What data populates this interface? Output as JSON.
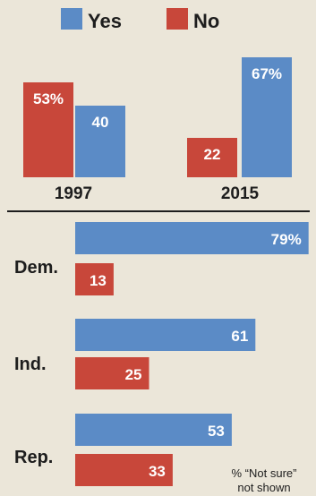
{
  "legend": [
    {
      "label": "Yes",
      "color": "#5b8bc6"
    },
    {
      "label": "No",
      "color": "#c8473a"
    }
  ],
  "note": [
    "% “Not sure”",
    "not shown"
  ],
  "chart_data": [
    {
      "type": "bar",
      "orientation": "vertical",
      "categories": [
        "1997",
        "2015"
      ],
      "series": [
        {
          "name": "No",
          "values": [
            53,
            22
          ],
          "labels": [
            "53%",
            "22"
          ],
          "color": "#c8473a"
        },
        {
          "name": "Yes",
          "values": [
            40,
            67
          ],
          "labels": [
            "40",
            "67%"
          ],
          "color": "#5b8bc6"
        }
      ],
      "title": "",
      "xlabel": "",
      "ylabel": "",
      "ylim": [
        0,
        70
      ],
      "grid": false,
      "legend_position": "top"
    },
    {
      "type": "bar",
      "orientation": "horizontal",
      "categories": [
        "Dem.",
        "Ind.",
        "Rep."
      ],
      "series": [
        {
          "name": "Yes",
          "values": [
            79,
            61,
            53
          ],
          "labels": [
            "79%",
            "61",
            "53"
          ],
          "color": "#5b8bc6"
        },
        {
          "name": "No",
          "values": [
            13,
            25,
            33
          ],
          "labels": [
            "13",
            "25",
            "33"
          ],
          "color": "#c8473a"
        }
      ],
      "title": "",
      "xlabel": "",
      "ylabel": "",
      "xlim": [
        0,
        80
      ],
      "grid": false
    }
  ]
}
